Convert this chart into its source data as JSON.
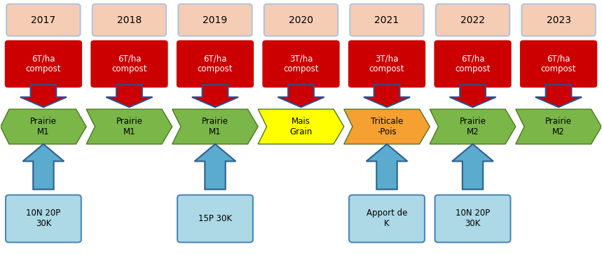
{
  "years": [
    "2017",
    "2018",
    "2019",
    "2020",
    "2021",
    "2022",
    "2023"
  ],
  "compost_labels": [
    "6T/ha\ncompost",
    "6T/ha\ncompost",
    "6T/ha\ncompost",
    "3T/ha\ncompost",
    "3T/ha\ncompost",
    "6T/ha\ncompost",
    "6T/ha\ncompost"
  ],
  "crop_labels": [
    "Prairie\nM1",
    "Prairie\nM1",
    "Prairie\nM1",
    "Mais\nGrain",
    "Triticale\n-Pois",
    "Prairie\nM2",
    "Prairie\nM2"
  ],
  "crop_colors": [
    "#7ab648",
    "#7ab648",
    "#7ab648",
    "#ffff00",
    "#f5a030",
    "#7ab648",
    "#7ab648"
  ],
  "bottom_labels": [
    "10N 20P\n30K",
    null,
    "15P 30K",
    null,
    "Apport de\nK",
    "10N 20P\n30K",
    null
  ],
  "year_box_color": "#f5cdb4",
  "year_box_border": "#b0c4de",
  "compost_box_color": "#cc0000",
  "compost_text_color": "#ffffff",
  "bottom_box_color": "#add8e6",
  "bottom_box_border": "#4a86b8",
  "arrow_red_color": "#cc0000",
  "arrow_red_border": "#2e4f8a",
  "arrow_blue_color": "#5aabcd",
  "arrow_blue_border": "#2e6090",
  "n_cols": 7,
  "fig_width": 8.59,
  "fig_height": 3.63
}
